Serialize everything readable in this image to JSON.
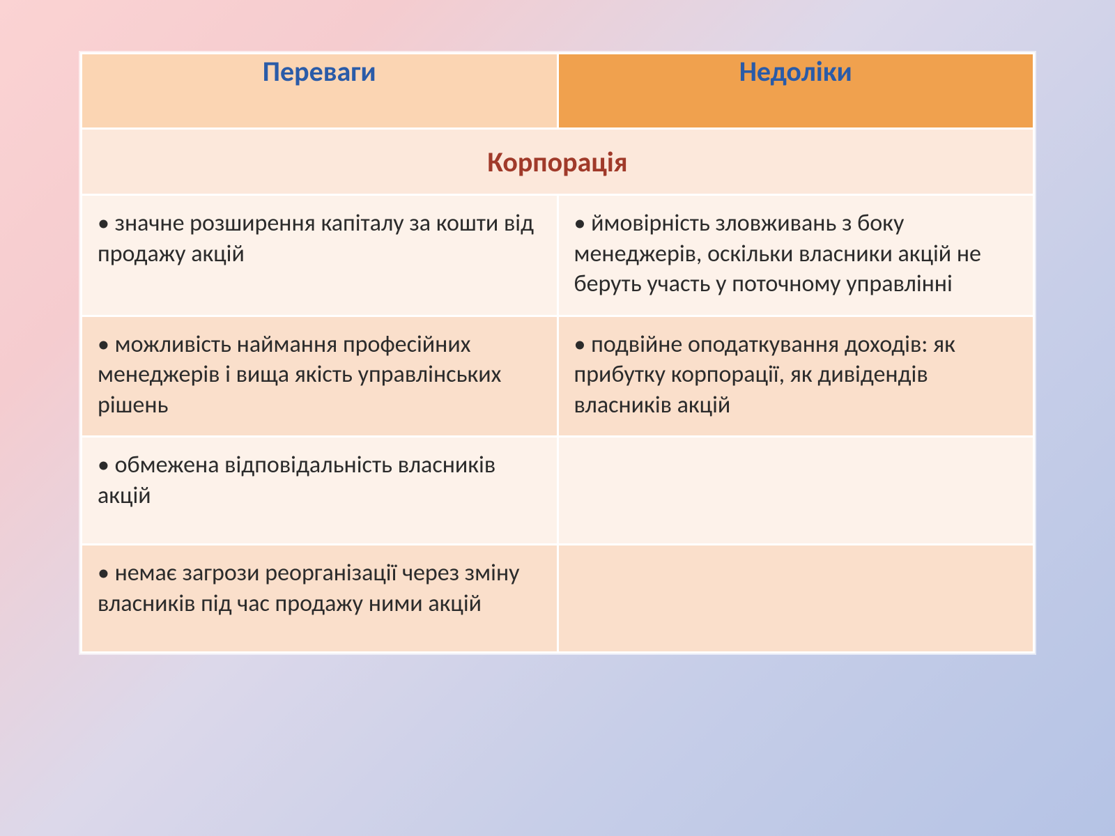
{
  "table": {
    "type": "table",
    "header_left": "Переваги",
    "header_right": "Недоліки",
    "section_title": "Корпорація",
    "rows": [
      {
        "left": "значне розширення капіталу за кошти від продажу акцій",
        "right": "ймовірність зловживань з боку менеджерів, оскільки власники акцій не беруть участь у поточному управлінні"
      },
      {
        "left": "можливість наймання професійних менеджерів і вища якість управлінських рішень",
        "right": "подвійне оподаткування доходів: як прибутку корпорації, як дивідендів власників акцій"
      },
      {
        "left": "обмежена відповідальність власників акцій",
        "right": ""
      },
      {
        "left": "немає загрози реорганізації через зміну власників під час продажу ними акцій",
        "right": ""
      }
    ],
    "colors": {
      "header_left_bg": "#fbd5b3",
      "header_right_bg": "#f0a14e",
      "header_text": "#2a5ba8",
      "section_bg": "#fce8db",
      "section_text": "#a03a2a",
      "row_light_bg": "#fdf2ea",
      "row_dark_bg": "#fadfcb",
      "cell_text": "#2b2b2b",
      "border": "#ffffff"
    },
    "fonts": {
      "header_size_pt": 30,
      "section_size_pt": 30,
      "cell_size_pt": 25,
      "family": "Calibri"
    },
    "bullet_glyph": "•"
  }
}
